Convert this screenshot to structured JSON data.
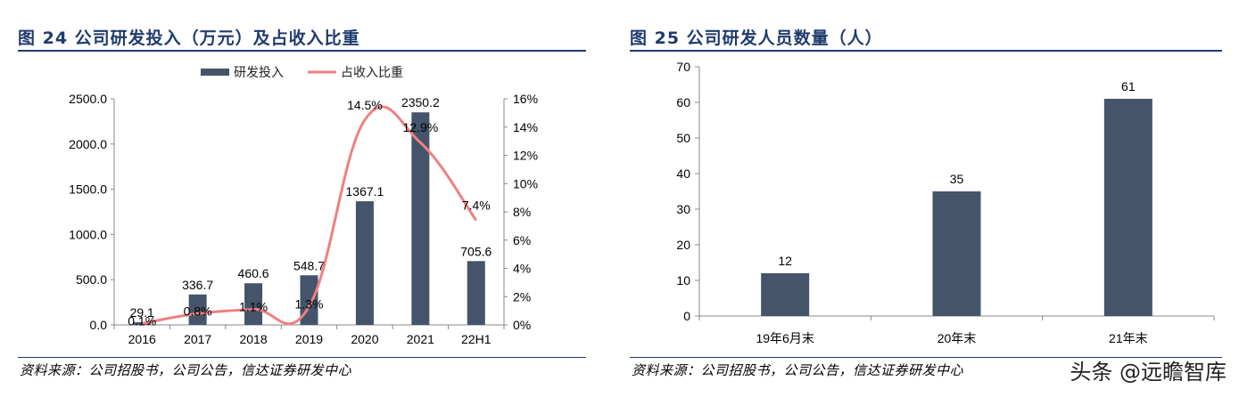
{
  "left_panel": {
    "title": "图 24 公司研发投入（万元）及占收入比重",
    "source": "资料来源：公司招股书，公司公告，信达证券研发中心"
  },
  "right_panel": {
    "title": "图 25 公司研发人员数量（人）",
    "source": "资料来源：公司招股书，公司公告，信达证券研发中心"
  },
  "watermark": "头条 @远瞻智库",
  "colors": {
    "bar": "#44546a",
    "line": "#f08080",
    "title": "#1f3b6e"
  },
  "chart_data": [
    {
      "type": "bar",
      "categories": [
        "2016",
        "2017",
        "2018",
        "2019",
        "2020",
        "2021",
        "22H1"
      ],
      "series": [
        {
          "name": "研发投入",
          "type": "bar",
          "axis": "left",
          "values": [
            29.1,
            336.7,
            460.6,
            548.7,
            1367.1,
            2350.2,
            705.6
          ],
          "labels": [
            "29.1",
            "336.7",
            "460.6",
            "548.7",
            "1367.1",
            "2350.2",
            "705.6"
          ]
        },
        {
          "name": "占收入比重",
          "type": "line",
          "axis": "right",
          "values": [
            0.1,
            0.8,
            1.1,
            1.3,
            14.5,
            12.9,
            7.4
          ],
          "labels": [
            "0.1%",
            "0.8%",
            "1.1%",
            "1.3%",
            "14.5%",
            "12.9%",
            "7.4%"
          ]
        }
      ],
      "ylim": [
        0,
        2500
      ],
      "yticks": [
        "0.0",
        "500.0",
        "1000.0",
        "1500.0",
        "2000.0",
        "2500.0"
      ],
      "y2lim": [
        0,
        16
      ],
      "y2ticks": [
        "0%",
        "2%",
        "4%",
        "6%",
        "8%",
        "10%",
        "12%",
        "14%",
        "16%"
      ],
      "legend": "top-center",
      "grid": false
    },
    {
      "type": "bar",
      "categories": [
        "19年6月末",
        "20年末",
        "21年末"
      ],
      "values": [
        12,
        35,
        61
      ],
      "labels": [
        "12",
        "35",
        "61"
      ],
      "ylim": [
        0,
        70
      ],
      "yticks": [
        "0",
        "10",
        "20",
        "30",
        "40",
        "50",
        "60",
        "70"
      ],
      "legend": "none",
      "grid": false
    }
  ]
}
